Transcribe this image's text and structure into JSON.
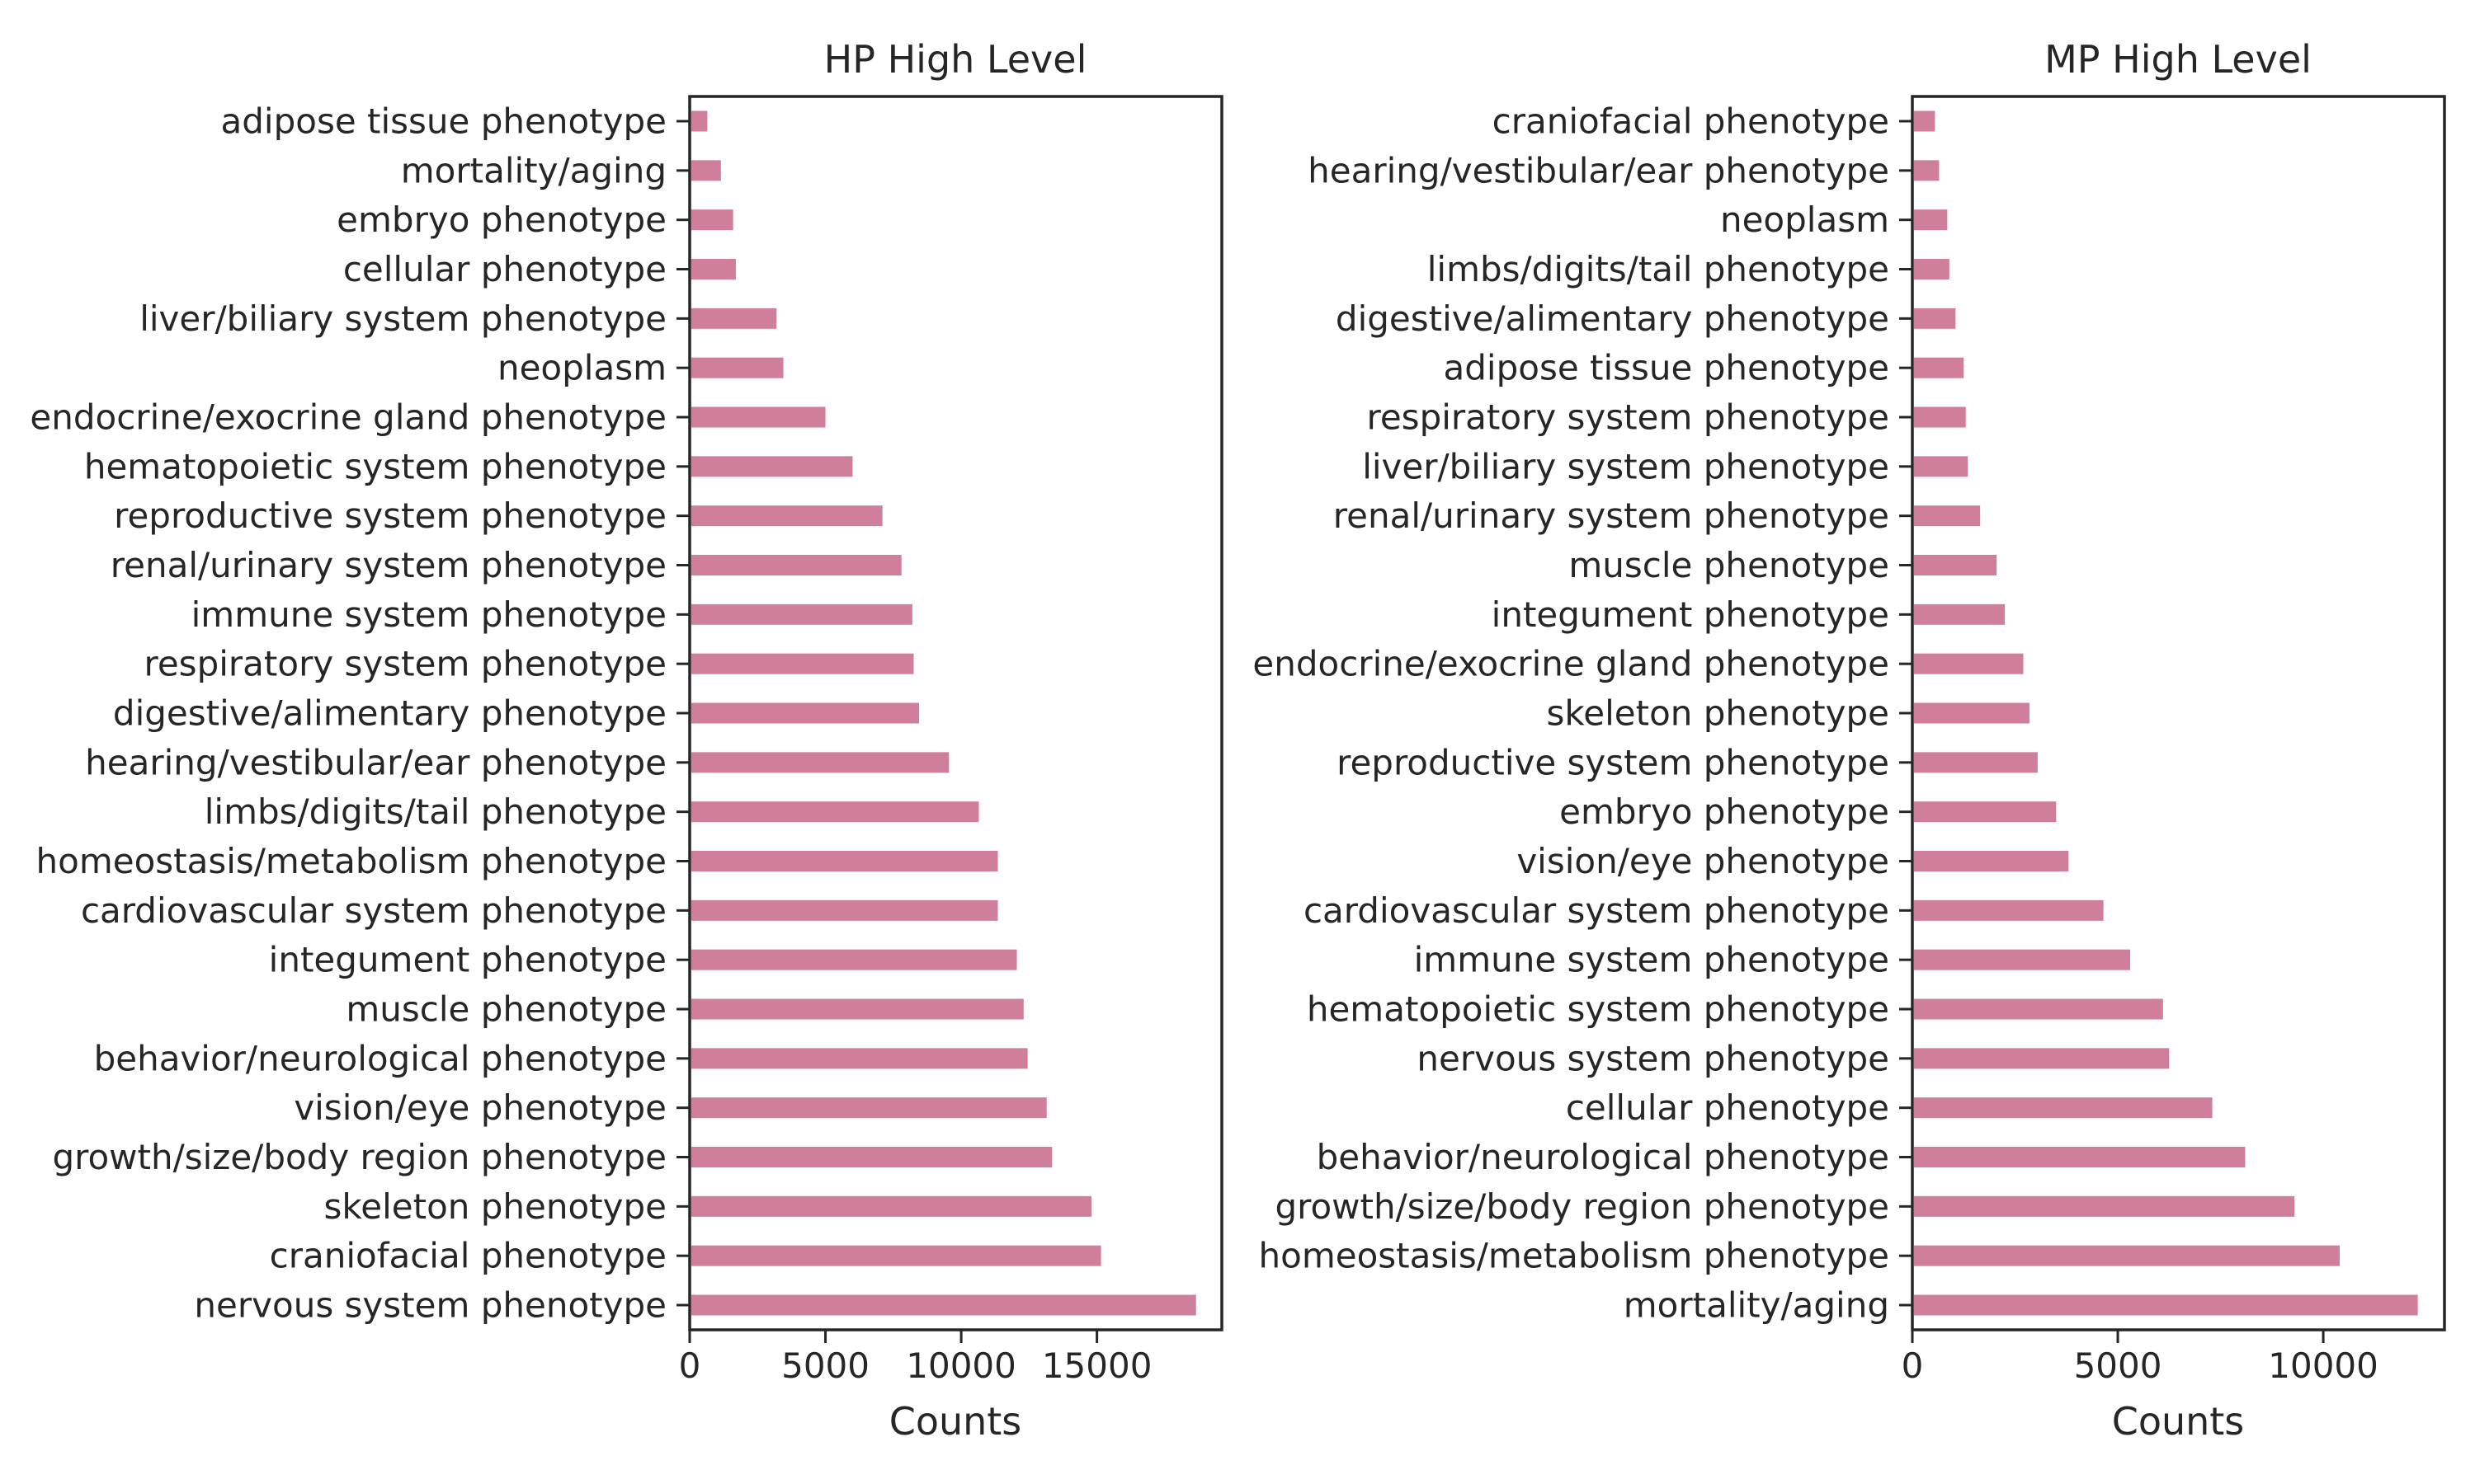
{
  "style": {
    "bar_color": "#cf7f99",
    "axis_color": "#262626",
    "background": "#ffffff"
  },
  "chart_data": [
    {
      "type": "bar",
      "orientation": "horizontal",
      "title": "HP High Level",
      "xlabel": "Counts",
      "ylabel": "",
      "xlim": [
        0,
        19600
      ],
      "xticks": [
        0,
        5000,
        10000,
        15000
      ],
      "grid": false,
      "categories": [
        "adipose tissue phenotype",
        "mortality/aging",
        "embryo phenotype",
        "cellular phenotype",
        "liver/biliary system phenotype",
        "neoplasm",
        "endocrine/exocrine gland phenotype",
        "hematopoietic system phenotype",
        "reproductive system phenotype",
        "renal/urinary system phenotype",
        "immune system phenotype",
        "respiratory system phenotype",
        "digestive/alimentary phenotype",
        "hearing/vestibular/ear phenotype",
        "limbs/digits/tail phenotype",
        "homeostasis/metabolism phenotype",
        "cardiovascular system phenotype",
        "integument phenotype",
        "muscle phenotype",
        "behavior/neurological phenotype",
        "vision/eye phenotype",
        "growth/size/body region phenotype",
        "skeleton phenotype",
        "craniofacial phenotype",
        "nervous system phenotype"
      ],
      "values": [
        650,
        1150,
        1600,
        1700,
        3200,
        3450,
        5000,
        6000,
        7100,
        7800,
        8200,
        8250,
        8450,
        9550,
        10650,
        11350,
        11350,
        12050,
        12300,
        12450,
        13150,
        13350,
        14800,
        15150,
        18650
      ]
    },
    {
      "type": "bar",
      "orientation": "horizontal",
      "title": "MP High Level",
      "xlabel": "Counts",
      "ylabel": "",
      "xlim": [
        0,
        12950
      ],
      "xticks": [
        0,
        5000,
        10000
      ],
      "grid": false,
      "categories": [
        "craniofacial phenotype",
        "hearing/vestibular/ear phenotype",
        "neoplasm",
        "limbs/digits/tail phenotype",
        "digestive/alimentary phenotype",
        "adipose tissue phenotype",
        "respiratory system phenotype",
        "liver/biliary system phenotype",
        "renal/urinary system phenotype",
        "muscle phenotype",
        "integument phenotype",
        "endocrine/exocrine gland phenotype",
        "skeleton phenotype",
        "reproductive system phenotype",
        "embryo phenotype",
        "vision/eye phenotype",
        "cardiovascular system phenotype",
        "immune system phenotype",
        "hematopoietic system phenotype",
        "nervous system phenotype",
        "cellular phenotype",
        "behavior/neurological phenotype",
        "growth/size/body region phenotype",
        "homeostasis/metabolism phenotype",
        "mortality/aging"
      ],
      "values": [
        550,
        650,
        850,
        900,
        1050,
        1250,
        1300,
        1350,
        1650,
        2050,
        2250,
        2700,
        2850,
        3050,
        3500,
        3800,
        4650,
        5300,
        6100,
        6250,
        7300,
        8100,
        9300,
        10400,
        12300
      ]
    }
  ]
}
